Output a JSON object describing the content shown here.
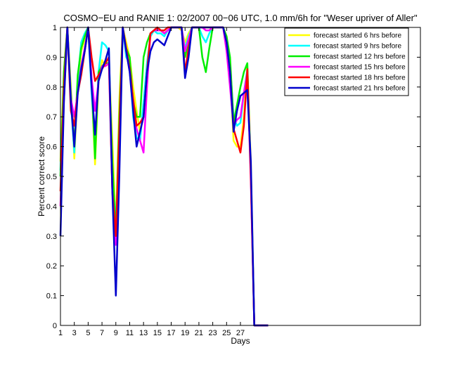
{
  "chart_data": {
    "type": "line",
    "title": "COSMO−EU and RANIE 1: 02/2007 00−06 UTC, 1.0 mm/6h for \"Weser upriver of Aller\"",
    "xlabel": "Days",
    "ylabel": "Percent correct score",
    "xlim": [
      1,
      53
    ],
    "ylim": [
      0,
      1
    ],
    "xticks": [
      1,
      3,
      5,
      7,
      9,
      11,
      13,
      15,
      17,
      19,
      21,
      23,
      25,
      27
    ],
    "xtick_labels": [
      "1",
      "3",
      "5",
      "7",
      "9",
      "11",
      "13",
      "15",
      "17",
      "19",
      "21",
      "23",
      "25",
      "27"
    ],
    "yticks": [
      0,
      0.1,
      0.2,
      0.3,
      0.4,
      0.5,
      0.6,
      0.7,
      0.8,
      0.9,
      1
    ],
    "ytick_labels": [
      "0",
      "0.1",
      "0.2",
      "0.3",
      "0.4",
      "0.5",
      "0.6",
      "0.7",
      "0.8",
      "0.9",
      "1"
    ],
    "grid": false,
    "legend_position": "top-right",
    "x": [
      1,
      1.5,
      2,
      2.5,
      3,
      3.5,
      4,
      4.5,
      5,
      5.5,
      6,
      6.5,
      7,
      7.5,
      8,
      8.5,
      9,
      9.5,
      10,
      10.5,
      11,
      11.5,
      12,
      12.5,
      13,
      13.5,
      14,
      14.5,
      15,
      15.5,
      16,
      16.5,
      17,
      17.5,
      18,
      18.5,
      19,
      19.5,
      20,
      20.5,
      21,
      21.5,
      22,
      22.5,
      23,
      23.5,
      24,
      24.5,
      25,
      25.5,
      26,
      26.5,
      27,
      27.5,
      28,
      28.5,
      29,
      29.5,
      30,
      30.5,
      31
    ],
    "series": [
      {
        "name": "forecast started 6 hrs before",
        "color": "#ffff00",
        "values": [
          0.55,
          0.85,
          1.0,
          0.8,
          0.56,
          0.8,
          0.92,
          0.96,
          1.0,
          0.8,
          0.54,
          0.82,
          0.89,
          0.87,
          0.88,
          0.62,
          0.32,
          0.75,
          1.0,
          0.95,
          0.9,
          0.8,
          0.72,
          0.65,
          0.72,
          0.86,
          0.97,
          0.99,
          0.99,
          0.99,
          0.98,
          0.99,
          1.0,
          1.0,
          1.0,
          0.99,
          0.95,
          0.98,
          1.0,
          1.0,
          1.0,
          1.0,
          1.0,
          1.0,
          1.0,
          1.0,
          1.0,
          1.0,
          0.97,
          0.85,
          0.62,
          0.6,
          0.6,
          0.7,
          0.87,
          0.55,
          0.0,
          0.0,
          0.0,
          0.0,
          0.0
        ]
      },
      {
        "name": "forecast started 9 hrs before",
        "color": "#00ffff",
        "values": [
          0.52,
          0.8,
          1.0,
          0.75,
          0.58,
          0.82,
          0.95,
          0.98,
          1.0,
          0.78,
          0.6,
          0.85,
          0.95,
          0.94,
          0.92,
          0.5,
          0.35,
          0.6,
          1.0,
          0.9,
          0.88,
          0.7,
          0.63,
          0.62,
          0.75,
          0.88,
          0.97,
          0.99,
          0.98,
          0.98,
          0.97,
          0.99,
          1.0,
          1.0,
          1.0,
          1.0,
          0.93,
          0.97,
          1.0,
          1.0,
          1.0,
          0.97,
          0.95,
          0.98,
          1.0,
          1.0,
          1.0,
          1.0,
          0.96,
          0.88,
          0.7,
          0.67,
          0.68,
          0.78,
          0.86,
          0.52,
          0.0,
          0.0,
          0.0,
          0.0,
          0.0
        ]
      },
      {
        "name": "forecast started 12 hrs before",
        "color": "#00ee00",
        "values": [
          0.5,
          0.85,
          1.0,
          0.78,
          0.6,
          0.84,
          0.93,
          0.97,
          1.0,
          0.82,
          0.56,
          0.85,
          0.87,
          0.88,
          0.88,
          0.55,
          0.3,
          0.7,
          1.0,
          0.93,
          0.9,
          0.75,
          0.7,
          0.7,
          0.9,
          0.95,
          0.98,
          0.99,
          0.99,
          0.99,
          0.98,
          0.99,
          1.0,
          1.0,
          1.0,
          1.0,
          0.9,
          0.95,
          1.0,
          1.0,
          1.0,
          0.9,
          0.85,
          0.93,
          1.0,
          1.0,
          1.0,
          1.0,
          0.97,
          0.9,
          0.68,
          0.74,
          0.8,
          0.85,
          0.88,
          0.5,
          0.0,
          0.0,
          0.0,
          0.0,
          0.0
        ]
      },
      {
        "name": "forecast started 15 hrs before",
        "color": "#ff00ff",
        "values": [
          0.4,
          0.75,
          1.0,
          0.76,
          0.7,
          0.78,
          0.87,
          0.93,
          1.0,
          0.83,
          0.72,
          0.82,
          0.87,
          0.87,
          0.88,
          0.45,
          0.27,
          0.55,
          1.0,
          0.92,
          0.85,
          0.74,
          0.66,
          0.62,
          0.58,
          0.8,
          0.98,
          0.99,
          0.99,
          0.99,
          0.98,
          0.99,
          1.0,
          1.0,
          1.0,
          1.0,
          0.92,
          0.96,
          1.0,
          1.0,
          1.0,
          1.0,
          0.99,
          0.99,
          1.0,
          1.0,
          1.0,
          1.0,
          0.92,
          0.8,
          0.67,
          0.69,
          0.7,
          0.78,
          0.85,
          0.48,
          0.0,
          0.0,
          0.0,
          0.0,
          0.0
        ]
      },
      {
        "name": "forecast started 18 hrs before",
        "color": "#ff0000",
        "values": [
          0.45,
          0.8,
          1.0,
          0.72,
          0.67,
          0.78,
          0.84,
          0.92,
          1.0,
          0.9,
          0.82,
          0.84,
          0.86,
          0.88,
          0.9,
          0.45,
          0.3,
          0.65,
          1.0,
          0.93,
          0.86,
          0.76,
          0.67,
          0.68,
          0.7,
          0.85,
          0.98,
          0.99,
          1.0,
          0.99,
          0.99,
          1.0,
          1.0,
          1.0,
          1.0,
          1.0,
          0.85,
          0.93,
          1.0,
          1.0,
          1.0,
          1.0,
          1.0,
          1.0,
          1.0,
          1.0,
          1.0,
          1.0,
          0.95,
          0.85,
          0.66,
          0.62,
          0.58,
          0.67,
          0.86,
          0.5,
          0.0,
          0.0,
          0.0,
          0.0,
          0.0
        ]
      },
      {
        "name": "forecast started 21 hrs before",
        "color": "#0000cc",
        "values": [
          0.3,
          0.75,
          1.0,
          0.75,
          0.6,
          0.78,
          0.86,
          0.92,
          1.0,
          0.8,
          0.64,
          0.82,
          0.86,
          0.89,
          0.93,
          0.45,
          0.1,
          0.5,
          1.0,
          0.92,
          0.85,
          0.72,
          0.6,
          0.65,
          0.7,
          0.85,
          0.92,
          0.95,
          0.96,
          0.95,
          0.94,
          0.97,
          1.0,
          1.0,
          1.0,
          1.0,
          0.83,
          0.9,
          1.0,
          1.0,
          1.0,
          1.0,
          1.0,
          1.0,
          1.0,
          1.0,
          1.0,
          1.0,
          0.95,
          0.85,
          0.65,
          0.72,
          0.77,
          0.78,
          0.79,
          0.55,
          0.0,
          0.0,
          0.0,
          0.0,
          0.0
        ]
      }
    ]
  }
}
